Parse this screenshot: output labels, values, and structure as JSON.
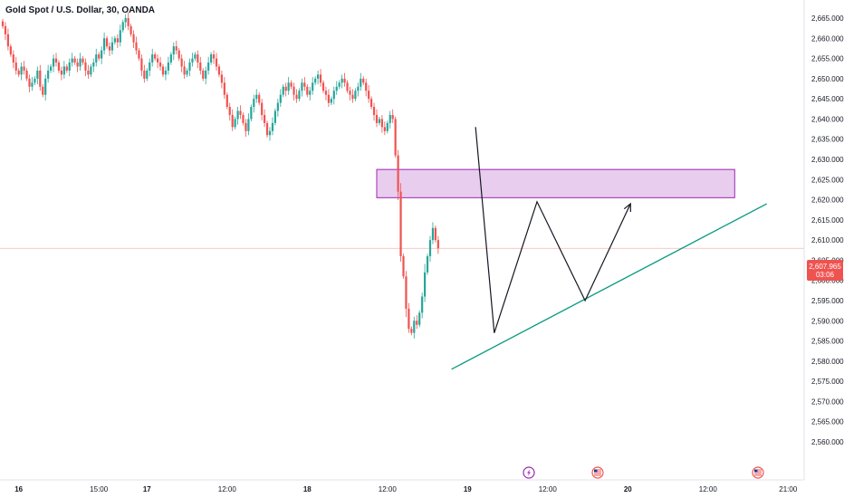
{
  "header": {
    "title": "Gold Spot / U.S. Dollar, 30, OANDA"
  },
  "colors": {
    "up": "#26a69a",
    "down": "#ef5350",
    "zone_fill": "#e8cdee",
    "zone_stroke": "#9c27b0",
    "trendline": "#089981",
    "arrow": "#131722",
    "price_tag": "#ef5350"
  },
  "last_price": {
    "value": "2,607.965",
    "countdown": "03:06"
  },
  "event_icons": [
    "lightning-icon",
    "us-flag-icon",
    "us-flag-icon"
  ],
  "chart_data": {
    "type": "candlestick",
    "title": "Gold Spot / U.S. Dollar, 30, OANDA",
    "xlabel": "",
    "ylabel": "",
    "ylim": [
      2558,
      2669
    ],
    "y_ticks": [
      "2,665.000",
      "2,660.000",
      "2,655.000",
      "2,650.000",
      "2,645.000",
      "2,640.000",
      "2,635.000",
      "2,630.000",
      "2,625.000",
      "2,620.000",
      "2,615.000",
      "2,610.000",
      "2,605.000",
      "2,600.000",
      "2,595.000",
      "2,590.000",
      "2,585.000",
      "2,580.000",
      "2,575.000",
      "2,570.000",
      "2,565.000",
      "2,560.000"
    ],
    "y_tick_values": [
      2665,
      2660,
      2655,
      2650,
      2645,
      2640,
      2635,
      2630,
      2625,
      2620,
      2615,
      2610,
      2605,
      2600,
      2595,
      2590,
      2585,
      2580,
      2575,
      2570,
      2565,
      2560
    ],
    "x_ticks": [
      {
        "label": "16",
        "bar": 6,
        "bold": true
      },
      {
        "label": "15:00",
        "bar": 36,
        "bold": false
      },
      {
        "label": "17",
        "bar": 54,
        "bold": true
      },
      {
        "label": "12:00",
        "bar": 84,
        "bold": false
      },
      {
        "label": "18",
        "bar": 114,
        "bold": true
      },
      {
        "label": "12:00",
        "bar": 144,
        "bold": false
      },
      {
        "label": "19",
        "bar": 174,
        "bold": true
      },
      {
        "label": "12:00",
        "bar": 204,
        "bold": false
      },
      {
        "label": "20",
        "bar": 234,
        "bold": true
      },
      {
        "label": "12:00",
        "bar": 264,
        "bold": false
      },
      {
        "label": "21:00",
        "bar": 294,
        "bold": false
      }
    ],
    "candles_close": [
      2663,
      2661,
      2658,
      2656,
      2654,
      2652,
      2651,
      2653,
      2652,
      2650,
      2648,
      2649,
      2650,
      2652,
      2648,
      2646,
      2650,
      2652,
      2653,
      2655,
      2654,
      2652,
      2651,
      2653,
      2652,
      2654,
      2655,
      2654,
      2653,
      2655,
      2654,
      2652,
      2651,
      2653,
      2654,
      2656,
      2655,
      2657,
      2660,
      2658,
      2657,
      2659,
      2660,
      2659,
      2662,
      2664,
      2665,
      2663,
      2661,
      2659,
      2657,
      2655,
      2652,
      2650,
      2652,
      2654,
      2656,
      2655,
      2654,
      2653,
      2651,
      2652,
      2654,
      2656,
      2658,
      2657,
      2655,
      2653,
      2651,
      2652,
      2654,
      2655,
      2656,
      2654,
      2652,
      2650,
      2652,
      2654,
      2656,
      2655,
      2653,
      2651,
      2649,
      2646,
      2643,
      2641,
      2638,
      2640,
      2642,
      2641,
      2639,
      2637,
      2640,
      2643,
      2645,
      2646,
      2644,
      2641,
      2639,
      2636,
      2637,
      2639,
      2642,
      2644,
      2646,
      2648,
      2647,
      2649,
      2648,
      2646,
      2645,
      2647,
      2649,
      2648,
      2646,
      2647,
      2649,
      2650,
      2651,
      2649,
      2647,
      2646,
      2644,
      2645,
      2647,
      2648,
      2649,
      2650,
      2649,
      2647,
      2646,
      2645,
      2647,
      2648,
      2650,
      2649,
      2647,
      2645,
      2643,
      2641,
      2639,
      2640,
      2638,
      2637,
      2639,
      2641,
      2640,
      2631,
      2622,
      2606,
      2601,
      2593,
      2588,
      2587,
      2590,
      2589,
      2592,
      2596,
      2602,
      2606,
      2610,
      2613,
      2610,
      2607.965
    ],
    "zone": {
      "top": 2627.5,
      "bottom": 2620.5,
      "start_bar": 140,
      "end_bar": 274
    },
    "trendline": {
      "start": {
        "bar": 168,
        "value": 2578
      },
      "end": {
        "bar": 286,
        "value": 2619
      }
    },
    "projection_path": [
      {
        "bar": 177,
        "value": 2638
      },
      {
        "bar": 184,
        "value": 2587
      },
      {
        "bar": 200,
        "value": 2619.5
      },
      {
        "bar": 218,
        "value": 2595
      },
      {
        "bar": 235,
        "value": 2619
      }
    ],
    "current_price": 2607.965,
    "grid": false,
    "legend": "none"
  }
}
